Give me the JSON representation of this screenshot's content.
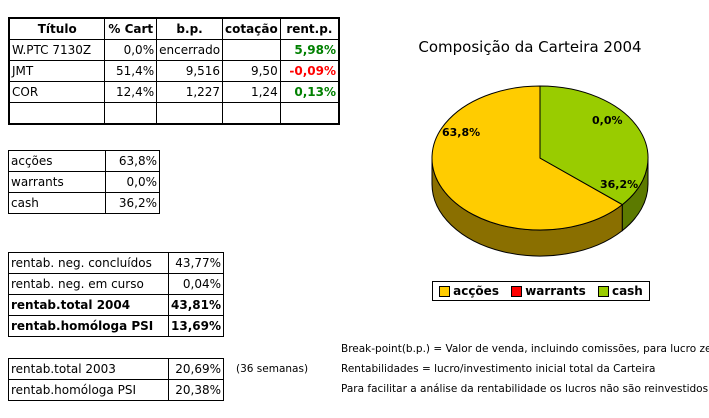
{
  "holdings_table": {
    "headers": [
      "Título",
      "% Cart",
      "b.p.",
      "cotação",
      "rent.p."
    ],
    "rows": [
      {
        "titulo": "W.PTC 7130Z",
        "cart": "0,0%",
        "bp": "encerrado",
        "cotacao": "",
        "rent": "5,98%",
        "rent_status": "positive"
      },
      {
        "titulo": "JMT",
        "cart": "51,4%",
        "bp": "9,516",
        "cotacao": "9,50",
        "rent": "-0,09%",
        "rent_status": "negative"
      },
      {
        "titulo": "COR",
        "cart": "12,4%",
        "bp": "1,227",
        "cotacao": "1,24",
        "rent": "0,13%",
        "rent_status": "positive"
      },
      {
        "titulo": "",
        "cart": "",
        "bp": "",
        "cotacao": "",
        "rent": "",
        "rent_status": ""
      }
    ]
  },
  "allocation_table": [
    {
      "label": "acções",
      "value": "63,8%"
    },
    {
      "label": "warrants",
      "value": "0,0%"
    },
    {
      "label": "cash",
      "value": "36,2%"
    }
  ],
  "returns_2004_table": [
    {
      "label": "rentab. neg. concluídos",
      "value": "43,77%"
    },
    {
      "label": "rentab. neg. em curso",
      "value": "0,04%"
    },
    {
      "label": "rentab.total 2004",
      "value": "43,81%"
    },
    {
      "label": "rentab.homóloga PSI",
      "value": "13,69%"
    }
  ],
  "returns_2003_table": [
    {
      "label": "rentab.total 2003",
      "value": "20,69%"
    },
    {
      "label": "rentab.homóloga PSI",
      "value": "20,38%"
    }
  ],
  "weeks_note": "(36 semanas)",
  "notes": [
    "Break-point(b.p.) = Valor de venda, incluindo comissões, para lucro zero.",
    "Rentabilidades = lucro/investimento inicial total da Carteira",
    "Para facilitar a análise da rentabilidade os lucros não são reinvestidos."
  ],
  "colors": {
    "positive": "#008000",
    "negative": "#ff0000",
    "accoes": "#ffcc00",
    "warrants": "#ff0000",
    "cash": "#99cc00"
  },
  "chart_data": {
    "type": "pie",
    "title": "Composição da Carteira 2004",
    "categories": [
      "acções",
      "warrants",
      "cash"
    ],
    "values": [
      63.8,
      0.0,
      36.2
    ],
    "data_labels": [
      "63,8%",
      "0,0%",
      "36,2%"
    ],
    "legend_position": "bottom",
    "style": "3d"
  }
}
